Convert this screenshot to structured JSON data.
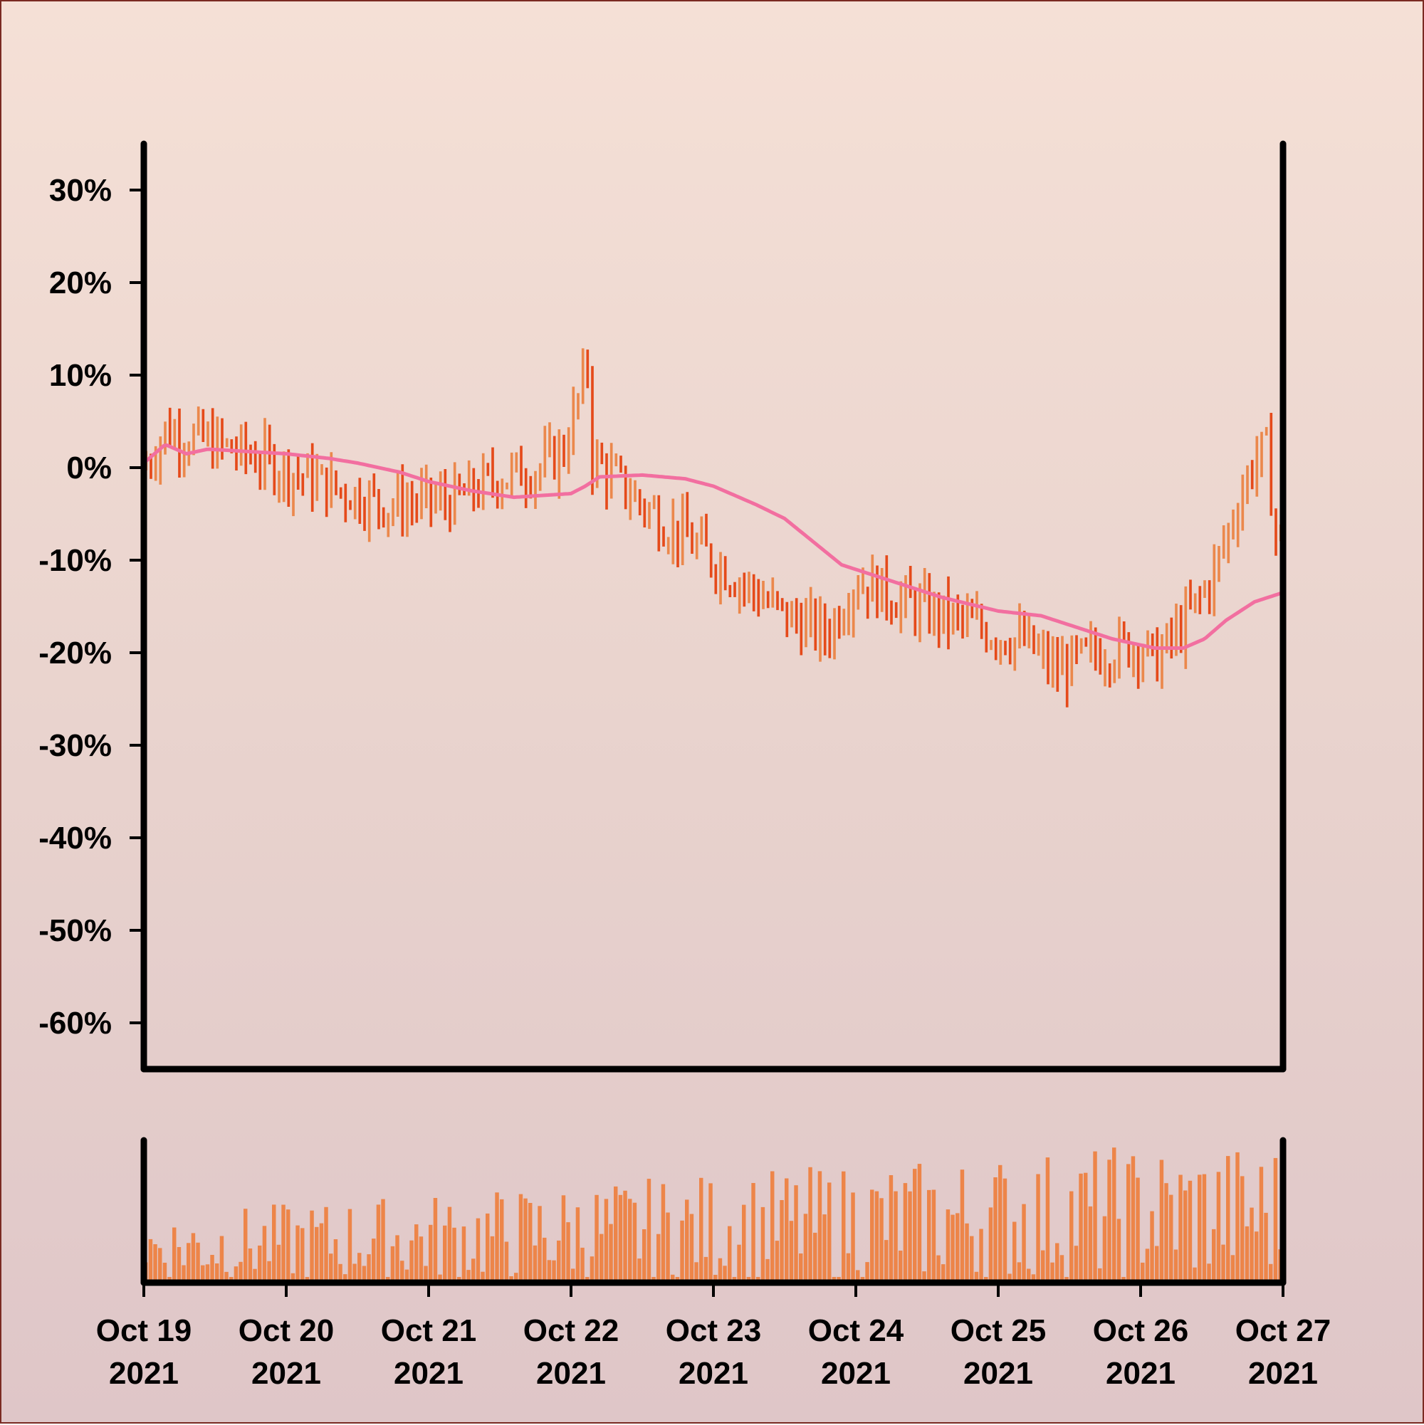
{
  "chart_data": {
    "type": "ohlc",
    "yformat": "percent",
    "ylim": [
      -65,
      35
    ],
    "yticks": [
      30,
      20,
      10,
      0,
      -10,
      -20,
      -30,
      -40,
      -50,
      -60
    ],
    "ytick_labels": [
      "30%",
      "20%",
      "10%",
      "0%",
      "-10%",
      "-20%",
      "-30%",
      "-40%",
      "-50%",
      "-60%"
    ],
    "xlim": [
      "2021-10-19",
      "2021-10-27"
    ],
    "xticks": [
      "2021-10-19",
      "2021-10-20",
      "2021-10-21",
      "2021-10-22",
      "2021-10-23",
      "2021-10-24",
      "2021-10-25",
      "2021-10-26",
      "2021-10-27"
    ],
    "xtick_labels": [
      [
        "Oct 19",
        "2021"
      ],
      [
        "Oct 20",
        "2021"
      ],
      [
        "Oct 21",
        "2021"
      ],
      [
        "Oct 22",
        "2021"
      ],
      [
        "Oct 23",
        "2021"
      ],
      [
        "Oct 24",
        "2021"
      ],
      [
        "Oct 25",
        "2021"
      ],
      [
        "Oct 26",
        "2021"
      ],
      [
        "Oct 27",
        "2021"
      ]
    ],
    "bars_per_day": 30,
    "price_close_anchors": [
      {
        "day": 0.0,
        "close": 0.0
      },
      {
        "day": 0.15,
        "close": 4.0
      },
      {
        "day": 0.4,
        "close": 3.0
      },
      {
        "day": 0.8,
        "close": 1.0
      },
      {
        "day": 1.3,
        "close": -2.0
      },
      {
        "day": 1.7,
        "close": -4.0
      },
      {
        "day": 2.2,
        "close": -3.5
      },
      {
        "day": 2.5,
        "close": -1.0
      },
      {
        "day": 2.8,
        "close": 0.0
      },
      {
        "day": 2.95,
        "close": 2.0
      },
      {
        "day": 3.12,
        "close": 11.0
      },
      {
        "day": 3.15,
        "close": 1.0
      },
      {
        "day": 3.5,
        "close": -4.0
      },
      {
        "day": 4.0,
        "close": -10.0
      },
      {
        "day": 4.5,
        "close": -16.0
      },
      {
        "day": 4.8,
        "close": -18.0
      },
      {
        "day": 5.0,
        "close": -12.0
      },
      {
        "day": 5.4,
        "close": -15.0
      },
      {
        "day": 5.8,
        "close": -17.0
      },
      {
        "day": 6.2,
        "close": -19.0
      },
      {
        "day": 6.4,
        "close": -22.0
      },
      {
        "day": 6.7,
        "close": -20.0
      },
      {
        "day": 7.0,
        "close": -19.0
      },
      {
        "day": 7.1,
        "close": -21.0
      },
      {
        "day": 7.3,
        "close": -17.0
      },
      {
        "day": 7.5,
        "close": -12.0
      },
      {
        "day": 7.7,
        "close": -3.0
      },
      {
        "day": 7.8,
        "close": 1.0
      },
      {
        "day": 7.88,
        "close": 2.0
      },
      {
        "day": 7.95,
        "close": -7.0
      },
      {
        "day": 8.0,
        "close": -8.0
      }
    ],
    "moving_average": {
      "color": "#f26fa0",
      "points": [
        {
          "day": 0.0,
          "value": 0.5
        },
        {
          "day": 0.15,
          "value": 2.5
        },
        {
          "day": 0.3,
          "value": 1.5
        },
        {
          "day": 0.45,
          "value": 2.0
        },
        {
          "day": 1.0,
          "value": 1.5
        },
        {
          "day": 1.3,
          "value": 1.0
        },
        {
          "day": 1.5,
          "value": 0.5
        },
        {
          "day": 1.8,
          "value": -0.5
        },
        {
          "day": 2.0,
          "value": -1.5
        },
        {
          "day": 2.3,
          "value": -2.5
        },
        {
          "day": 2.6,
          "value": -3.2
        },
        {
          "day": 3.0,
          "value": -2.8
        },
        {
          "day": 3.1,
          "value": -2.0
        },
        {
          "day": 3.2,
          "value": -1.0
        },
        {
          "day": 3.5,
          "value": -0.8
        },
        {
          "day": 3.8,
          "value": -1.2
        },
        {
          "day": 4.0,
          "value": -2.0
        },
        {
          "day": 4.3,
          "value": -4.0
        },
        {
          "day": 4.5,
          "value": -5.5
        },
        {
          "day": 4.7,
          "value": -8.0
        },
        {
          "day": 4.9,
          "value": -10.5
        },
        {
          "day": 5.2,
          "value": -12.0
        },
        {
          "day": 5.6,
          "value": -14.0
        },
        {
          "day": 6.0,
          "value": -15.5
        },
        {
          "day": 6.3,
          "value": -16.0
        },
        {
          "day": 6.5,
          "value": -17.0
        },
        {
          "day": 6.8,
          "value": -18.5
        },
        {
          "day": 7.1,
          "value": -19.5
        },
        {
          "day": 7.3,
          "value": -19.5
        },
        {
          "day": 7.45,
          "value": -18.5
        },
        {
          "day": 7.6,
          "value": -16.5
        },
        {
          "day": 7.8,
          "value": -14.5
        },
        {
          "day": 8.0,
          "value": -13.5
        }
      ]
    },
    "colors": {
      "up": "#eb884c",
      "down": "#e54a1a",
      "volume": "#ed8549",
      "axis": "#000000"
    },
    "volume": {
      "seed": 7
    }
  }
}
